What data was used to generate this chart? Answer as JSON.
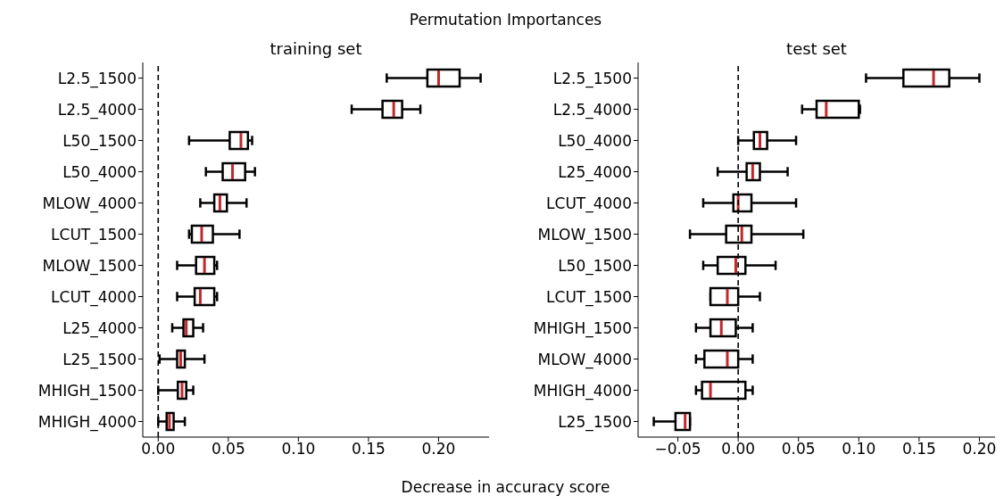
{
  "chart_data": [
    {
      "type": "box",
      "title": "training set",
      "orientation": "horizontal",
      "annotations": [
        "Permutation Importances",
        "Decrease in accuracy score"
      ],
      "categories": [
        "L2.5_1500",
        "L2.5_4000",
        "L50_1500",
        "L50_4000",
        "MLOW_4000",
        "LCUT_1500",
        "MLOW_1500",
        "LCUT_4000",
        "L25_4000",
        "L25_1500",
        "MHIGH_1500",
        "MHIGH_4000"
      ],
      "series": [
        {
          "color": "#000000",
          "boxes": [
            {
              "low": 0.163,
              "q1": 0.192,
              "median": 0.2,
              "q3": 0.215,
              "high": 0.23
            },
            {
              "low": 0.138,
              "q1": 0.16,
              "median": 0.168,
              "q3": 0.174,
              "high": 0.187
            },
            {
              "low": 0.022,
              "q1": 0.051,
              "median": 0.059,
              "q3": 0.064,
              "high": 0.067
            },
            {
              "low": 0.034,
              "q1": 0.046,
              "median": 0.053,
              "q3": 0.062,
              "high": 0.069
            },
            {
              "low": 0.03,
              "q1": 0.04,
              "median": 0.044,
              "q3": 0.049,
              "high": 0.063
            },
            {
              "low": 0.022,
              "q1": 0.024,
              "median": 0.031,
              "q3": 0.039,
              "high": 0.058
            },
            {
              "low": 0.0135,
              "q1": 0.027,
              "median": 0.033,
              "q3": 0.04,
              "high": 0.042
            },
            {
              "low": 0.0135,
              "q1": 0.026,
              "median": 0.03,
              "q3": 0.04,
              "high": 0.042
            },
            {
              "low": 0.01,
              "q1": 0.018,
              "median": 0.02,
              "q3": 0.025,
              "high": 0.032
            },
            {
              "low": 0.001,
              "q1": 0.0135,
              "median": 0.016,
              "q3": 0.019,
              "high": 0.033
            },
            {
              "low": 0.0,
              "q1": 0.014,
              "median": 0.017,
              "q3": 0.02,
              "high": 0.025
            },
            {
              "low": 0.0,
              "q1": 0.006,
              "median": 0.008,
              "q3": 0.011,
              "high": 0.019
            }
          ]
        }
      ],
      "xlim": [
        -0.011,
        0.236
      ],
      "xticks": [
        {
          "value": 0,
          "label": "0.00"
        },
        {
          "value": 0.05,
          "label": "0.05"
        },
        {
          "value": 0.1,
          "label": "0.10"
        },
        {
          "value": 0.15,
          "label": "0.15"
        },
        {
          "value": 0.2,
          "label": "0.20"
        }
      ],
      "ref_lines": [
        {
          "axis": "x",
          "value": 0,
          "color": "#000000",
          "line_style": "dashed"
        }
      ],
      "grid": false,
      "legend": false
    },
    {
      "type": "box",
      "title": "test set",
      "orientation": "horizontal",
      "categories": [
        "L2.5_1500",
        "L2.5_4000",
        "L50_4000",
        "L25_4000",
        "LCUT_4000",
        "MLOW_1500",
        "L50_1500",
        "LCUT_1500",
        "MHIGH_1500",
        "MLOW_4000",
        "MHIGH_4000",
        "L25_1500"
      ],
      "series": [
        {
          "color": "#000000",
          "boxes": [
            {
              "low": 0.106,
              "q1": 0.137,
              "median": 0.162,
              "q3": 0.175,
              "high": 0.2
            },
            {
              "low": 0.053,
              "q1": 0.065,
              "median": 0.073,
              "q3": 0.1,
              "high": 0.101
            },
            {
              "low": 0.0,
              "q1": 0.013,
              "median": 0.018,
              "q3": 0.024,
              "high": 0.048
            },
            {
              "low": -0.017,
              "q1": 0.007,
              "median": 0.012,
              "q3": 0.018,
              "high": 0.041
            },
            {
              "low": -0.029,
              "q1": -0.004,
              "median": 0.0,
              "q3": 0.011,
              "high": 0.048
            },
            {
              "low": -0.04,
              "q1": -0.01,
              "median": 0.003,
              "q3": 0.011,
              "high": 0.054
            },
            {
              "low": -0.029,
              "q1": -0.017,
              "median": -0.002,
              "q3": 0.006,
              "high": 0.031
            },
            {
              "low": -0.023,
              "q1": -0.023,
              "median": -0.009,
              "q3": 0.0,
              "high": 0.018
            },
            {
              "low": -0.035,
              "q1": -0.023,
              "median": -0.014,
              "q3": -0.002,
              "high": 0.012
            },
            {
              "low": -0.035,
              "q1": -0.028,
              "median": -0.009,
              "q3": 0.0,
              "high": 0.012
            },
            {
              "low": -0.035,
              "q1": -0.03,
              "median": -0.023,
              "q3": 0.006,
              "high": 0.012
            },
            {
              "low": -0.07,
              "q1": -0.052,
              "median": -0.044,
              "q3": -0.04,
              "high": -0.04
            }
          ]
        }
      ],
      "xlim": [
        -0.083,
        0.213
      ],
      "xticks": [
        {
          "value": -0.05,
          "label": "−0.05"
        },
        {
          "value": 0,
          "label": "0.00"
        },
        {
          "value": 0.05,
          "label": "0.05"
        },
        {
          "value": 0.1,
          "label": "0.10"
        },
        {
          "value": 0.15,
          "label": "0.15"
        },
        {
          "value": 0.2,
          "label": "0.20"
        }
      ],
      "ref_lines": [
        {
          "axis": "x",
          "value": 0,
          "color": "#000000",
          "line_style": "dashed"
        }
      ],
      "grid": false,
      "legend": false
    }
  ]
}
